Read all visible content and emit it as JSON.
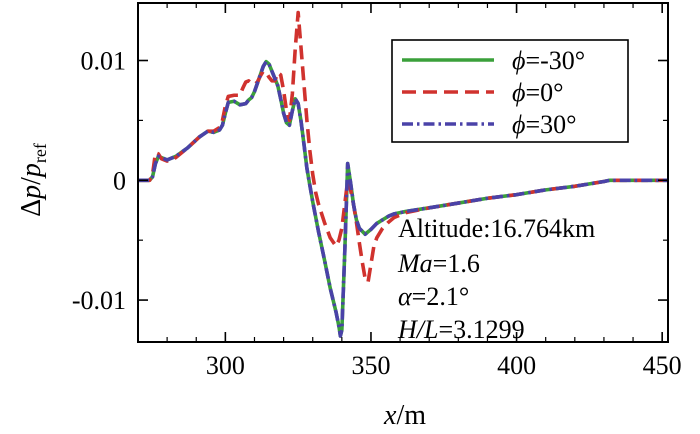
{
  "chart_data": {
    "type": "line",
    "title": "",
    "xlabel": "x/m",
    "xlabel_parts": {
      "var": "x",
      "unit": "/m"
    },
    "ylabel": "Δp/pref",
    "ylabel_parts": {
      "delta": "Δ",
      "var": "p",
      "slash": "/",
      "denom": "p",
      "sub": "ref"
    },
    "xlim": [
      270,
      452
    ],
    "ylim": [
      -0.0135,
      0.0148
    ],
    "xticks": [
      300,
      350,
      400,
      450
    ],
    "xtick_labels": [
      "300",
      "350",
      "400",
      "450"
    ],
    "yticks": [
      0.01,
      0,
      -0.01
    ],
    "ytick_labels": [
      "0.01",
      "0",
      "-0.01"
    ],
    "grid": false,
    "legend_position": "top-right",
    "series": [
      {
        "name": "ϕ=-30°",
        "legend": {
          "symbol": "ϕ",
          "value": "=-30°"
        },
        "color": "#3aa03a",
        "style": "solid",
        "x": [
          270,
          272,
          274,
          275,
          276,
          277,
          278,
          280,
          283,
          287,
          291,
          294,
          296,
          298,
          299,
          300,
          301,
          303,
          305,
          307,
          308,
          309,
          310,
          311,
          312,
          313,
          314,
          315,
          316,
          317,
          318,
          319,
          320,
          321,
          322,
          323,
          324,
          325,
          326,
          327,
          328,
          330,
          332,
          334,
          336,
          338,
          339,
          339.5,
          340,
          341,
          342,
          343,
          344,
          345,
          346,
          348,
          350,
          352,
          354,
          356,
          358,
          362,
          370,
          380,
          390,
          400,
          410,
          420,
          430,
          432,
          440,
          452
        ],
        "y": [
          0,
          0,
          0,
          0.0003,
          0.0014,
          0.002,
          0.0019,
          0.0017,
          0.002,
          0.0027,
          0.0036,
          0.0041,
          0.004,
          0.0042,
          0.0046,
          0.0056,
          0.0065,
          0.0066,
          0.0063,
          0.0064,
          0.0067,
          0.0069,
          0.0074,
          0.0081,
          0.0088,
          0.0095,
          0.0099,
          0.0097,
          0.0091,
          0.0085,
          0.0079,
          0.0068,
          0.0056,
          0.0048,
          0.0046,
          0.0058,
          0.0068,
          0.0064,
          0.0049,
          0.003,
          0.001,
          -0.0018,
          -0.0043,
          -0.0066,
          -0.009,
          -0.011,
          -0.0122,
          -0.013,
          -0.0125,
          -0.006,
          0.0014,
          -0.0002,
          -0.002,
          -0.0033,
          -0.004,
          -0.0045,
          -0.0041,
          -0.0036,
          -0.0033,
          -0.003,
          -0.0028,
          -0.0026,
          -0.0023,
          -0.0019,
          -0.0015,
          -0.0012,
          -0.0008,
          -0.0005,
          -0.0001,
          0.0,
          0.0,
          0.0
        ]
      },
      {
        "name": "ϕ=0°",
        "legend": {
          "symbol": "ϕ",
          "value": "=0°"
        },
        "color": "#d0322e",
        "style": "dashed",
        "x": [
          270,
          272,
          274,
          275,
          276,
          277,
          278,
          280,
          283,
          287,
          291,
          294,
          296,
          298,
          299,
          300,
          301,
          303,
          305,
          306,
          307,
          308,
          309,
          310,
          311,
          312,
          313,
          314,
          315,
          316,
          317,
          318,
          319,
          320,
          321,
          322,
          323,
          324,
          325,
          326,
          327,
          328,
          329,
          330,
          331,
          332,
          334,
          336,
          338,
          339,
          340,
          341,
          342,
          343,
          344,
          345,
          346,
          347,
          348,
          349,
          350,
          351,
          352,
          354,
          356,
          358,
          362,
          370,
          380,
          390,
          400,
          410,
          420,
          430,
          432,
          440,
          452
        ],
        "y": [
          0,
          0,
          0,
          0.0005,
          0.0023,
          0.0022,
          0.0018,
          0.0016,
          0.0019,
          0.0027,
          0.0036,
          0.0041,
          0.0041,
          0.0044,
          0.005,
          0.0062,
          0.007,
          0.0071,
          0.0071,
          0.0077,
          0.0082,
          0.0083,
          0.0081,
          0.008,
          0.0082,
          0.0087,
          0.0091,
          0.009,
          0.0086,
          0.0083,
          0.0083,
          0.009,
          0.0088,
          0.0075,
          0.0058,
          0.005,
          0.0072,
          0.011,
          0.014,
          0.011,
          0.008,
          0.005,
          0.0025,
          0.0005,
          -0.001,
          -0.002,
          -0.0035,
          -0.0048,
          -0.0055,
          -0.005,
          -0.004,
          -0.002,
          0.0,
          -0.0008,
          -0.002,
          -0.0035,
          -0.0052,
          -0.0068,
          -0.0082,
          -0.0085,
          -0.007,
          -0.0055,
          -0.0048,
          -0.004,
          -0.0035,
          -0.0031,
          -0.0027,
          -0.0023,
          -0.0019,
          -0.0015,
          -0.0012,
          -0.0008,
          -0.0005,
          -0.0001,
          0.0,
          0.0,
          0.0
        ]
      },
      {
        "name": "ϕ=30°",
        "legend": {
          "symbol": "ϕ",
          "value": "=30°"
        },
        "color": "#4a42a8",
        "style": "dashdot",
        "x": [
          270,
          272,
          274,
          275,
          276,
          277,
          278,
          280,
          283,
          287,
          291,
          294,
          296,
          298,
          299,
          300,
          301,
          303,
          305,
          307,
          308,
          309,
          310,
          311,
          312,
          313,
          314,
          315,
          316,
          317,
          318,
          319,
          320,
          321,
          322,
          323,
          324,
          325,
          326,
          327,
          328,
          330,
          332,
          334,
          336,
          338,
          339,
          339.5,
          340,
          341,
          342,
          343,
          344,
          345,
          346,
          348,
          350,
          352,
          354,
          356,
          358,
          362,
          370,
          380,
          390,
          400,
          410,
          420,
          430,
          432,
          440,
          452
        ],
        "y": [
          0,
          0,
          0,
          0.0003,
          0.0014,
          0.002,
          0.0019,
          0.0017,
          0.002,
          0.0027,
          0.0036,
          0.0041,
          0.004,
          0.0042,
          0.0046,
          0.0056,
          0.0065,
          0.0066,
          0.0063,
          0.0064,
          0.0067,
          0.0069,
          0.0074,
          0.0081,
          0.0088,
          0.0095,
          0.0099,
          0.0097,
          0.0091,
          0.0085,
          0.0079,
          0.0068,
          0.0056,
          0.0048,
          0.0046,
          0.0058,
          0.0068,
          0.0064,
          0.0049,
          0.003,
          0.001,
          -0.0018,
          -0.0043,
          -0.0066,
          -0.009,
          -0.011,
          -0.0122,
          -0.013,
          -0.0125,
          -0.006,
          0.0014,
          -0.0002,
          -0.002,
          -0.0033,
          -0.004,
          -0.0045,
          -0.0041,
          -0.0036,
          -0.0033,
          -0.003,
          -0.0028,
          -0.0026,
          -0.0023,
          -0.0019,
          -0.0015,
          -0.0012,
          -0.0008,
          -0.0005,
          -0.0001,
          0.0,
          0.0,
          0.0
        ]
      }
    ],
    "annotations": [
      {
        "label": "Altitude:",
        "value": "16.764km"
      },
      {
        "label": "Ma",
        "value": "=1.6"
      },
      {
        "label": "α",
        "value": "=2.1°"
      },
      {
        "label": "H/L",
        "value": "=3.1299"
      }
    ]
  }
}
